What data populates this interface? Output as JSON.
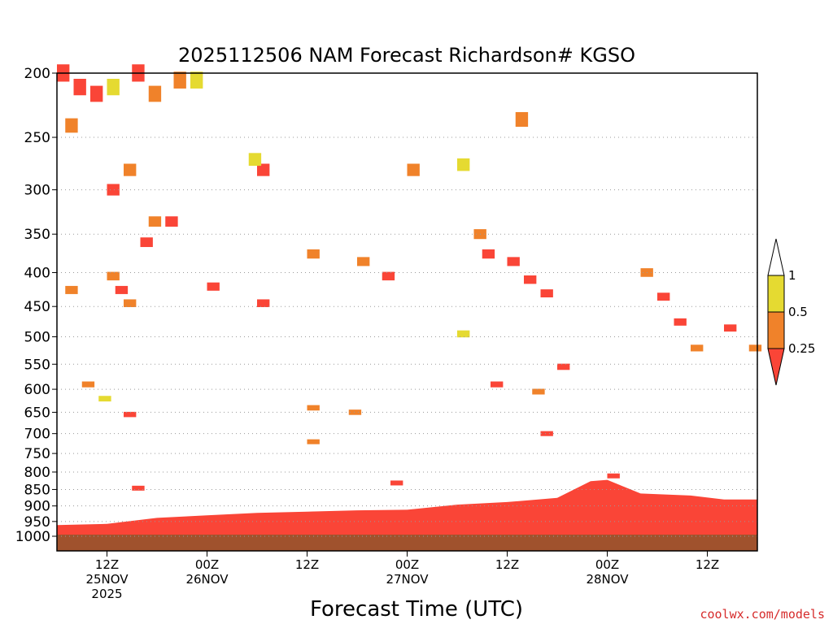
{
  "chart_data": {
    "type": "heatmap",
    "title": "2025112506 NAM Forecast Richardson# KGSO",
    "xlabel": "Forecast Time (UTC)",
    "ylabel": "",
    "y_axis": {
      "range": [
        1000,
        200
      ],
      "ticks": [
        200,
        250,
        300,
        350,
        400,
        450,
        500,
        550,
        600,
        650,
        700,
        750,
        800,
        850,
        900,
        950,
        1000
      ],
      "tick_labels": [
        "200",
        "250",
        "300",
        "350",
        "400",
        "450",
        "500",
        "550",
        "600",
        "650",
        "700",
        "750",
        "800",
        "850",
        "900",
        "950",
        "1000"
      ]
    },
    "x_axis": {
      "range": [
        0,
        84
      ],
      "tick_hours": [
        6,
        18,
        30,
        42,
        54,
        66,
        78
      ],
      "tick_labels": [
        [
          "12Z",
          "25NOV",
          "2025"
        ],
        [
          "00Z",
          "26NOV"
        ],
        [
          "12Z"
        ],
        [
          "00Z",
          "27NOV"
        ],
        [
          "12Z"
        ],
        [
          "00Z",
          "28NOV"
        ],
        [
          "12Z"
        ]
      ]
    },
    "grid": "dotted horizontal",
    "colorbar": {
      "levels": [
        0,
        0.25,
        0.5,
        1
      ],
      "tick_labels": [
        "1",
        "0.5",
        "0.25"
      ],
      "colors": {
        "below_025": "#fa4537",
        "from_025_to_05": "#f0822a",
        "from_05_to_1": "#e5da31"
      }
    },
    "surface_color": "#a0522d",
    "values": {
      "boundary_layer_top_hPa_by_hour": [
        [
          0,
          962
        ],
        [
          6,
          958
        ],
        [
          12,
          938
        ],
        [
          18,
          930
        ],
        [
          24,
          922
        ],
        [
          30,
          918
        ],
        [
          36,
          914
        ],
        [
          42,
          912
        ],
        [
          48,
          896
        ],
        [
          54,
          888
        ],
        [
          60,
          875
        ],
        [
          64,
          826
        ],
        [
          66,
          822
        ],
        [
          70,
          862
        ],
        [
          76,
          868
        ],
        [
          80,
          880
        ],
        [
          84,
          880
        ]
      ],
      "cells_hPa": [
        {
          "h": 0,
          "p": 200,
          "ri": 0.2
        },
        {
          "h": 2,
          "p": 210,
          "ri": 0.2
        },
        {
          "h": 4,
          "p": 215,
          "ri": 0.2
        },
        {
          "h": 1,
          "p": 240,
          "ri": 0.3
        },
        {
          "h": 6,
          "p": 210,
          "ri": 0.7
        },
        {
          "h": 9,
          "p": 200,
          "ri": 0.2
        },
        {
          "h": 11,
          "p": 215,
          "ri": 0.4
        },
        {
          "h": 14,
          "p": 205,
          "ri": 0.4
        },
        {
          "h": 16,
          "p": 205,
          "ri": 0.7
        },
        {
          "h": 24,
          "p": 280,
          "ri": 0.2
        },
        {
          "h": 23,
          "p": 270,
          "ri": 0.7
        },
        {
          "h": 8,
          "p": 280,
          "ri": 0.4
        },
        {
          "h": 10,
          "p": 360,
          "ri": 0.2
        },
        {
          "h": 11,
          "p": 335,
          "ri": 0.4
        },
        {
          "h": 13,
          "p": 335,
          "ri": 0.2
        },
        {
          "h": 6,
          "p": 300,
          "ri": 0.2
        },
        {
          "h": 1,
          "p": 425,
          "ri": 0.4
        },
        {
          "h": 6,
          "p": 405,
          "ri": 0.4
        },
        {
          "h": 7,
          "p": 425,
          "ri": 0.2
        },
        {
          "h": 8,
          "p": 445,
          "ri": 0.4
        },
        {
          "h": 18,
          "p": 420,
          "ri": 0.2
        },
        {
          "h": 24,
          "p": 445,
          "ri": 0.2
        },
        {
          "h": 30,
          "p": 375,
          "ri": 0.4
        },
        {
          "h": 36,
          "p": 385,
          "ri": 0.4
        },
        {
          "h": 39,
          "p": 405,
          "ri": 0.2
        },
        {
          "h": 42,
          "p": 280,
          "ri": 0.4
        },
        {
          "h": 48,
          "p": 275,
          "ri": 0.7
        },
        {
          "h": 50,
          "p": 350,
          "ri": 0.4
        },
        {
          "h": 51,
          "p": 375,
          "ri": 0.2
        },
        {
          "h": 54,
          "p": 385,
          "ri": 0.2
        },
        {
          "h": 56,
          "p": 410,
          "ri": 0.2
        },
        {
          "h": 58,
          "p": 430,
          "ri": 0.2
        },
        {
          "h": 55,
          "p": 235,
          "ri": 0.4
        },
        {
          "h": 70,
          "p": 400,
          "ri": 0.4
        },
        {
          "h": 72,
          "p": 435,
          "ri": 0.2
        },
        {
          "h": 74,
          "p": 475,
          "ri": 0.2
        },
        {
          "h": 76,
          "p": 520,
          "ri": 0.4
        },
        {
          "h": 80,
          "p": 485,
          "ri": 0.2
        },
        {
          "h": 60,
          "p": 555,
          "ri": 0.2
        },
        {
          "h": 52,
          "p": 590,
          "ri": 0.2
        },
        {
          "h": 57,
          "p": 605,
          "ri": 0.4
        },
        {
          "h": 58,
          "p": 700,
          "ri": 0.2
        },
        {
          "h": 30,
          "p": 640,
          "ri": 0.4
        },
        {
          "h": 35,
          "p": 650,
          "ri": 0.4
        },
        {
          "h": 30,
          "p": 720,
          "ri": 0.4
        },
        {
          "h": 3,
          "p": 590,
          "ri": 0.4
        },
        {
          "h": 8,
          "p": 655,
          "ri": 0.2
        },
        {
          "h": 9,
          "p": 845,
          "ri": 0.2
        },
        {
          "h": 40,
          "p": 830,
          "ri": 0.2
        },
        {
          "h": 66,
          "p": 810,
          "ri": 0.2
        },
        {
          "h": 5,
          "p": 620,
          "ri": 0.7
        },
        {
          "h": 48,
          "p": 495,
          "ri": 0.7
        },
        {
          "h": 83,
          "p": 520,
          "ri": 0.4
        }
      ]
    }
  },
  "credit": "coolwx.com/models"
}
